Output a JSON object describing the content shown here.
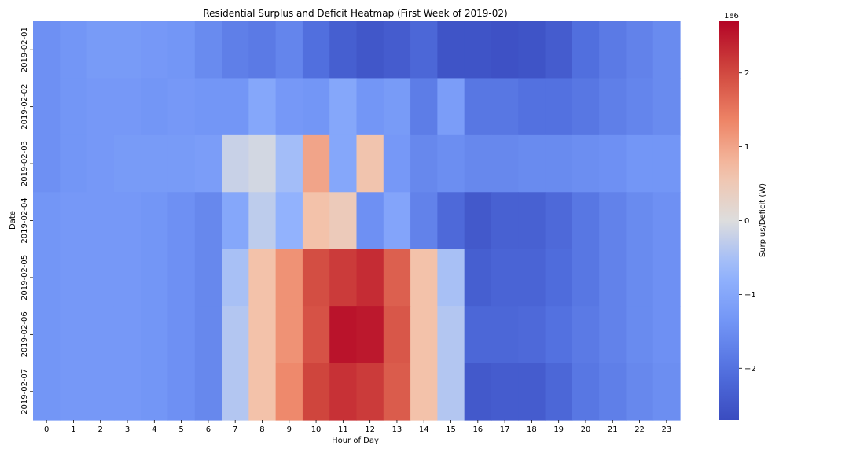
{
  "chart_data": {
    "type": "heatmap",
    "title": "Residential Surplus and Deficit Heatmap (First Week of 2019-02)",
    "xlabel": "Hour of Day",
    "ylabel": "Date",
    "x": [
      "0",
      "1",
      "2",
      "3",
      "4",
      "5",
      "6",
      "7",
      "8",
      "9",
      "10",
      "11",
      "12",
      "13",
      "14",
      "15",
      "16",
      "17",
      "18",
      "19",
      "20",
      "21",
      "22",
      "23"
    ],
    "y": [
      "2019-02-01",
      "2019-02-02",
      "2019-02-03",
      "2019-02-04",
      "2019-02-05",
      "2019-02-06",
      "2019-02-07"
    ],
    "values": [
      [
        -1.45,
        -1.35,
        -1.25,
        -1.25,
        -1.3,
        -1.35,
        -1.55,
        -1.75,
        -1.85,
        -1.65,
        -2.05,
        -2.35,
        -2.5,
        -2.4,
        -2.2,
        -2.55,
        -2.55,
        -2.6,
        -2.55,
        -2.4,
        -2.05,
        -1.85,
        -1.7,
        -1.55
      ],
      [
        -1.45,
        -1.35,
        -1.3,
        -1.3,
        -1.35,
        -1.3,
        -1.35,
        -1.35,
        -1.0,
        -1.3,
        -1.35,
        -1.0,
        -1.35,
        -1.25,
        -1.8,
        -1.2,
        -1.9,
        -1.9,
        -2.0,
        -2.0,
        -1.9,
        -1.75,
        -1.65,
        -1.55
      ],
      [
        -1.45,
        -1.35,
        -1.3,
        -1.25,
        -1.25,
        -1.25,
        -1.2,
        -0.2,
        -0.1,
        -0.55,
        1.0,
        -1.0,
        0.6,
        -1.3,
        -1.6,
        -1.5,
        -1.6,
        -1.6,
        -1.55,
        -1.55,
        -1.5,
        -1.45,
        -1.35,
        -1.35
      ],
      [
        -1.35,
        -1.3,
        -1.3,
        -1.3,
        -1.35,
        -1.45,
        -1.6,
        -1.0,
        -0.3,
        -0.75,
        0.65,
        0.45,
        -1.45,
        -1.05,
        -1.7,
        -2.15,
        -2.45,
        -2.3,
        -2.3,
        -2.15,
        -1.9,
        -1.7,
        -1.55,
        -1.45
      ],
      [
        -1.35,
        -1.3,
        -1.3,
        -1.3,
        -1.35,
        -1.45,
        -1.6,
        -0.5,
        0.65,
        1.2,
        1.95,
        2.15,
        2.3,
        1.75,
        0.65,
        -0.5,
        -2.35,
        -2.25,
        -2.25,
        -2.1,
        -1.9,
        -1.7,
        -1.55,
        -1.45
      ],
      [
        -1.35,
        -1.3,
        -1.3,
        -1.3,
        -1.35,
        -1.45,
        -1.6,
        -0.4,
        0.65,
        1.2,
        1.9,
        2.55,
        2.5,
        1.85,
        0.65,
        -0.4,
        -2.2,
        -2.2,
        -2.15,
        -2.0,
        -1.85,
        -1.7,
        -1.55,
        -1.45
      ],
      [
        -1.35,
        -1.3,
        -1.3,
        -1.3,
        -1.35,
        -1.45,
        -1.6,
        -0.4,
        0.65,
        1.3,
        2.05,
        2.25,
        2.15,
        1.8,
        0.65,
        -0.4,
        -2.45,
        -2.4,
        -2.4,
        -2.2,
        -1.9,
        -1.75,
        -1.6,
        -1.5
      ]
    ],
    "value_scale": "1e6",
    "vmin": -2.7,
    "vmax": 2.7,
    "colormap": "coolwarm",
    "colorbar": {
      "label": "Surplus/Deficit (W)",
      "offset_text": "1e6",
      "ticks": [
        -2,
        -1,
        0,
        1,
        2
      ],
      "tick_labels": [
        "−2",
        "−1",
        "0",
        "1",
        "2"
      ]
    }
  }
}
